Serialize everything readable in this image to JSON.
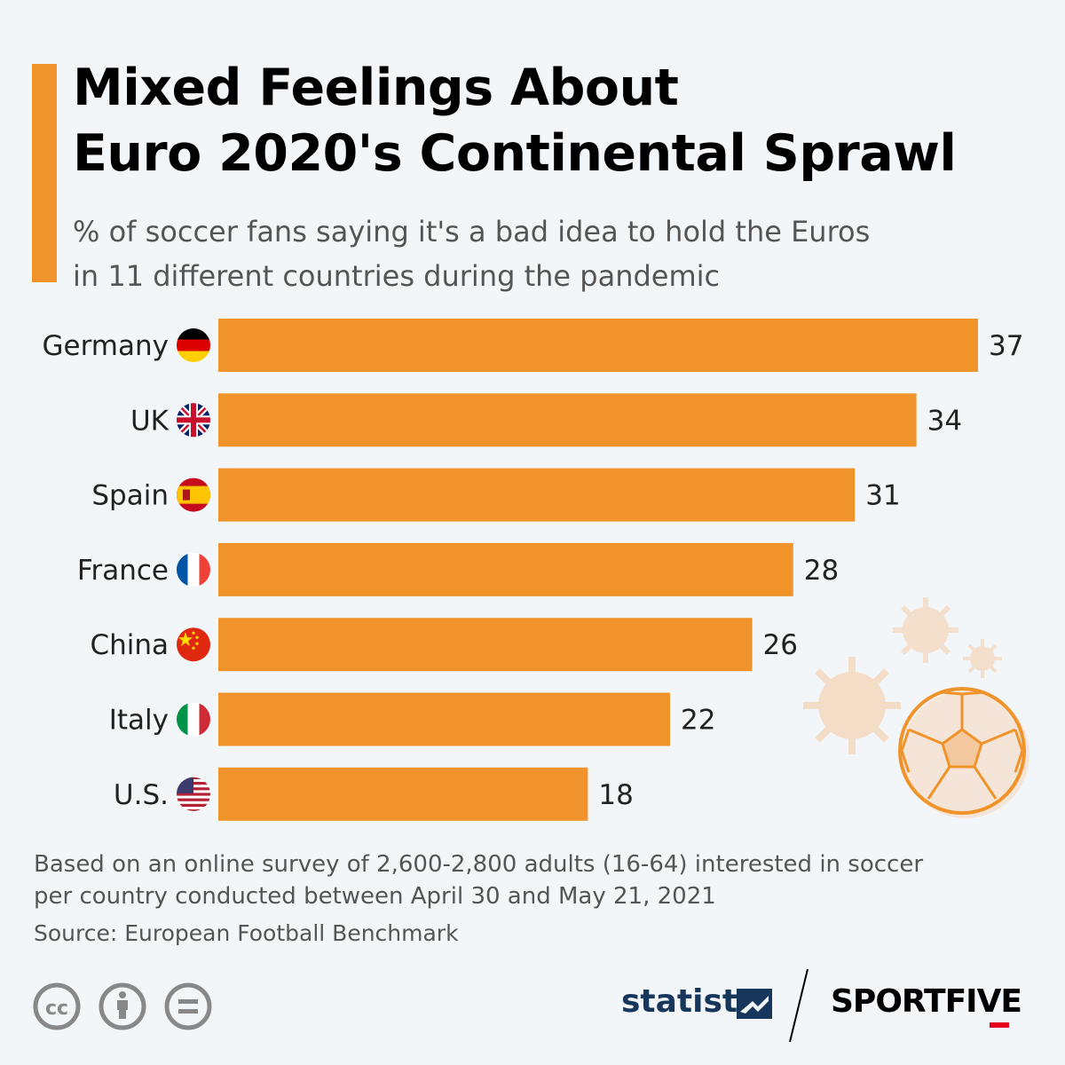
{
  "header": {
    "title_line1": "Mixed Feelings About",
    "title_line2": "Euro 2020's Continental Sprawl",
    "subtitle_line1": "% of soccer fans saying it's a bad idea to hold the Euros",
    "subtitle_line2": "in 11 different countries during the pandemic"
  },
  "colors": {
    "accent": "#f0932b",
    "bar": "#f0932b",
    "background": "#f3f6f9",
    "brand_navy": "#17365c",
    "sportfive_red": "#e6001e"
  },
  "chart_data": {
    "type": "bar",
    "orientation": "horizontal",
    "title": "Mixed Feelings About Euro 2020's Continental Sprawl",
    "subtitle": "% of soccer fans saying it's a bad idea to hold the Euros in 11 different countries during the pandemic",
    "categories": [
      "Germany",
      "UK",
      "Spain",
      "France",
      "China",
      "Italy",
      "U.S."
    ],
    "values": [
      37,
      34,
      31,
      28,
      26,
      22,
      18
    ],
    "category_icons": [
      "germany-flag-icon",
      "uk-flag-icon",
      "spain-flag-icon",
      "france-flag-icon",
      "china-flag-icon",
      "italy-flag-icon",
      "us-flag-icon"
    ],
    "xlim": [
      0,
      37
    ],
    "grid": false,
    "data_labels": true
  },
  "footer": {
    "note_line1": "Based on an online survey of 2,600-2,800 adults (16-64) interested in soccer",
    "note_line2": "per country conducted between April 30 and May 21, 2021",
    "source": "Source: European Football Benchmark",
    "license_icons": [
      "creative-commons-icon",
      "attribution-icon",
      "no-derivatives-icon"
    ],
    "brand_statista": "statista",
    "brand_sportfive": "SPORTFIVE"
  }
}
